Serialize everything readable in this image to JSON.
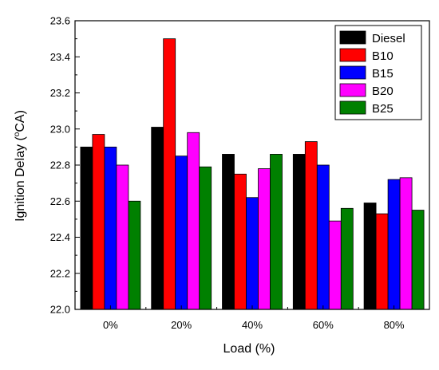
{
  "chart_data": {
    "type": "bar",
    "title": "",
    "xlabel": "Load (%)",
    "ylabel_prefix": "Ignition Delay (",
    "ylabel_degree": "o",
    "ylabel_suffix": "CA)",
    "categories": [
      "0%",
      "20%",
      "40%",
      "60%",
      "80%"
    ],
    "ylim": [
      22.0,
      23.6
    ],
    "yticks": [
      "22.0",
      "22.2",
      "22.4",
      "22.6",
      "22.8",
      "23.0",
      "23.2",
      "23.4",
      "23.6"
    ],
    "grid": false,
    "legend_position": "top-right",
    "series": [
      {
        "name": "Diesel",
        "color": "#000000",
        "values": [
          22.9,
          23.01,
          22.86,
          22.86,
          22.59
        ]
      },
      {
        "name": "B10",
        "color": "#ff0000",
        "values": [
          22.97,
          23.5,
          22.75,
          22.93,
          22.53
        ]
      },
      {
        "name": "B15",
        "color": "#0000ff",
        "values": [
          22.9,
          22.85,
          22.62,
          22.8,
          22.72
        ]
      },
      {
        "name": "B20",
        "color": "#ff00ff",
        "values": [
          22.8,
          22.98,
          22.78,
          22.49,
          22.73
        ]
      },
      {
        "name": "B25",
        "color": "#008000",
        "values": [
          22.6,
          22.79,
          22.86,
          22.56,
          22.55
        ]
      }
    ]
  }
}
